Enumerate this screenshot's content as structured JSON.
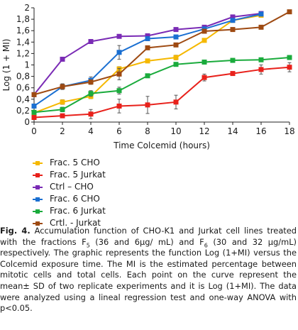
{
  "chart_data": {
    "type": "line",
    "xlabel": "Time Colcemid (hours)",
    "ylabel": "Log (1 + MI)",
    "xlim": [
      0,
      18
    ],
    "ylim": [
      0,
      2
    ],
    "x_ticks": [
      0,
      2,
      4,
      6,
      8,
      10,
      12,
      14,
      16,
      18
    ],
    "y_ticks": [
      "0",
      "0,2",
      "0,4",
      "0,6",
      "0,8",
      "1",
      "1,2",
      "1,4",
      "1,6",
      "1,8",
      "2"
    ],
    "grid": false,
    "legend_position": "below",
    "series": [
      {
        "name": "Frac. 5 CHO",
        "color": "#f5b800",
        "x": [
          0,
          2,
          4,
          6,
          8,
          10,
          12,
          14,
          16
        ],
        "y": [
          0.16,
          0.35,
          0.45,
          0.93,
          1.07,
          1.13,
          1.43,
          1.78,
          1.87
        ],
        "err": [
          0,
          0.04,
          0.04,
          0.04,
          0,
          0.04,
          0,
          0.03,
          0
        ]
      },
      {
        "name": "Frac. 5 Jurkat",
        "color": "#e8211b",
        "x": [
          0,
          2,
          4,
          6,
          8,
          10,
          12,
          14,
          16,
          18
        ],
        "y": [
          0.08,
          0.11,
          0.14,
          0.28,
          0.3,
          0.35,
          0.78,
          0.85,
          0.92,
          0.96
        ],
        "err": [
          0,
          0,
          0.08,
          0.12,
          0.15,
          0.12,
          0.06,
          0.03,
          0.08,
          0.08
        ]
      },
      {
        "name": "Ctrl – CHO",
        "color": "#7a2bb5",
        "x": [
          0,
          2,
          4,
          6,
          8,
          10,
          12,
          14,
          16
        ],
        "y": [
          0.48,
          1.1,
          1.41,
          1.5,
          1.51,
          1.62,
          1.66,
          1.84,
          1.9
        ],
        "err": [
          0,
          0,
          0,
          0,
          0,
          0,
          0,
          0,
          0
        ]
      },
      {
        "name": "Frac. 6 CHO",
        "color": "#1a6fd1",
        "x": [
          0,
          2,
          4,
          6,
          8,
          10,
          12,
          14,
          16
        ],
        "y": [
          0.28,
          0.62,
          0.73,
          1.22,
          1.46,
          1.49,
          1.63,
          1.78,
          1.89
        ],
        "err": [
          0,
          0.05,
          0.06,
          0.12,
          0,
          0,
          0,
          0,
          0
        ]
      },
      {
        "name": "Frac. 6 Jurkat",
        "color": "#1aab3c",
        "x": [
          0,
          2,
          4,
          6,
          8,
          10,
          12,
          14,
          16,
          18
        ],
        "y": [
          0.17,
          0.22,
          0.5,
          0.55,
          0.81,
          1.01,
          1.05,
          1.08,
          1.09,
          1.13
        ],
        "err": [
          0,
          0.04,
          0.05,
          0.06,
          0,
          0,
          0,
          0,
          0,
          0
        ]
      },
      {
        "name": "Crtl. - Jurkat",
        "color": "#9e4a12",
        "x": [
          0,
          2,
          4,
          6,
          8,
          10,
          12,
          14,
          16,
          18
        ],
        "y": [
          0.48,
          0.62,
          0.7,
          0.84,
          1.3,
          1.35,
          1.59,
          1.62,
          1.66,
          1.93
        ],
        "err": [
          0,
          0.04,
          0.04,
          0.1,
          0,
          0,
          0,
          0,
          0,
          0
        ]
      }
    ]
  },
  "caption": {
    "fig_label": "Fig. 4.",
    "part1": " Accumulation function of CHO-K1 and Jurkat cell lines treated with the fractions F",
    "sub5": "5",
    "part2": " (36 and 6μg/ mL) and F",
    "sub6": "6",
    "part3": " (30 and 32 μg/mL) respectively. The graphic represents the function Log (1+MI) versus the Colcemid exposure time. The MI is the estimated percentage between mitotic cells and total cells. Each point on the curve represent the mean± SD of two replicate experiments and it is Log (1+MI). The data were analyzed using a lineal regression test and one-way ANOVA with p<0.05."
  }
}
